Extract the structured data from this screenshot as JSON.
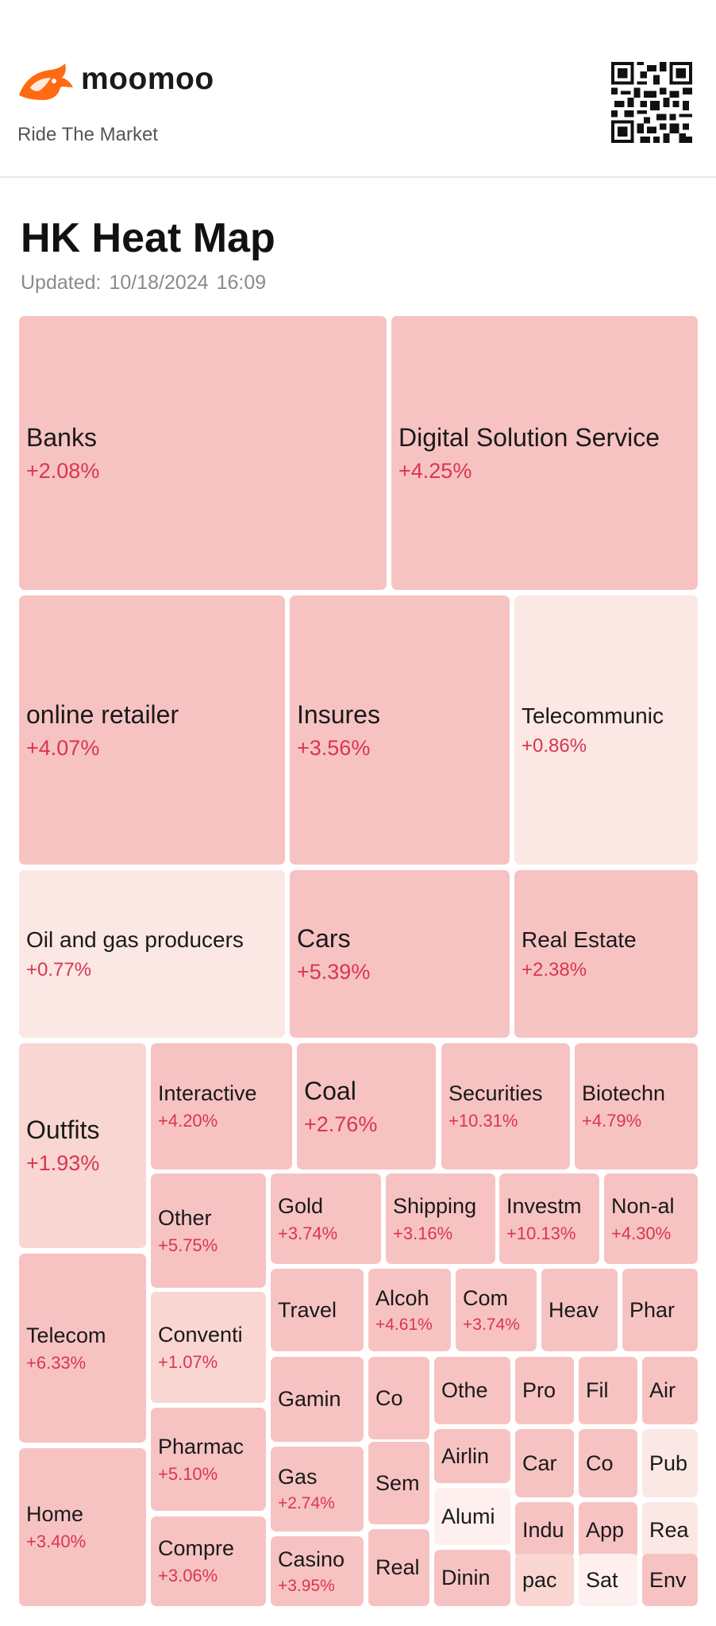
{
  "brand": {
    "name": "moomoo",
    "tagline": "Ride The Market",
    "logo_icon": "bull-logo-icon",
    "qr_icon": "qr-code-icon"
  },
  "page": {
    "title": "HK Heat Map",
    "updated_label": "Updated:",
    "updated_date": "10/18/2024",
    "updated_time": "16:09"
  },
  "colors": {
    "deep": "#f7c3c2",
    "medium": "#f9d6d2",
    "light": "#fbe7e4",
    "pale": "#fdf0ee",
    "positive": "#d9364e"
  },
  "tiles": [
    {
      "name": "Banks",
      "change": "+2.08%",
      "shade": "deep"
    },
    {
      "name": "Digital Solution Service",
      "change": "+4.25%",
      "shade": "deep"
    },
    {
      "name": "online retailer",
      "change": "+4.07%",
      "shade": "deep"
    },
    {
      "name": "Insures",
      "change": "+3.56%",
      "shade": "deep"
    },
    {
      "name": "Telecommunic",
      "change": "+0.86%",
      "shade": "light"
    },
    {
      "name": "Oil and gas producers",
      "change": "+0.77%",
      "shade": "light"
    },
    {
      "name": "Cars",
      "change": "+5.39%",
      "shade": "deep"
    },
    {
      "name": "Real Estate",
      "change": "+2.38%",
      "shade": "deep"
    },
    {
      "name": "Outfits",
      "change": "+1.93%",
      "shade": "medium"
    },
    {
      "name": "Interactive",
      "change": "+4.20%",
      "shade": "deep"
    },
    {
      "name": "Coal",
      "change": "+2.76%",
      "shade": "deep"
    },
    {
      "name": "Securities",
      "change": "+10.31%",
      "shade": "deep"
    },
    {
      "name": "Biotechn",
      "change": "+4.79%",
      "shade": "deep"
    },
    {
      "name": "Other",
      "change": "+5.75%",
      "shade": "deep"
    },
    {
      "name": "Gold",
      "change": "+3.74%",
      "shade": "deep"
    },
    {
      "name": "Shipping",
      "change": "+3.16%",
      "shade": "deep"
    },
    {
      "name": "Investm",
      "change": "+10.13%",
      "shade": "deep"
    },
    {
      "name": "Non-al",
      "change": "+4.30%",
      "shade": "deep"
    },
    {
      "name": "Telecom",
      "change": "+6.33%",
      "shade": "deep"
    },
    {
      "name": "Conventi",
      "change": "+1.07%",
      "shade": "medium"
    },
    {
      "name": "Travel",
      "change": "",
      "shade": "deep"
    },
    {
      "name": "Alcoh",
      "change": "+4.61%",
      "shade": "deep"
    },
    {
      "name": "Com",
      "change": "+3.74%",
      "shade": "deep"
    },
    {
      "name": "Heav",
      "change": "",
      "shade": "deep"
    },
    {
      "name": "Phar",
      "change": "",
      "shade": "deep"
    },
    {
      "name": "Pharmac",
      "change": "+5.10%",
      "shade": "deep"
    },
    {
      "name": "Gamin",
      "change": "",
      "shade": "deep"
    },
    {
      "name": "Co",
      "change": "",
      "shade": "deep"
    },
    {
      "name": "Othe",
      "change": "",
      "shade": "deep"
    },
    {
      "name": "Pro",
      "change": "",
      "shade": "deep"
    },
    {
      "name": "Fil",
      "change": "",
      "shade": "deep"
    },
    {
      "name": "Air",
      "change": "",
      "shade": "deep"
    },
    {
      "name": "Home",
      "change": "+3.40%",
      "shade": "deep"
    },
    {
      "name": "Gas",
      "change": "+2.74%",
      "shade": "deep"
    },
    {
      "name": "Sem",
      "change": "",
      "shade": "deep"
    },
    {
      "name": "Airlin",
      "change": "",
      "shade": "deep"
    },
    {
      "name": "Car",
      "change": "",
      "shade": "deep"
    },
    {
      "name": "Co",
      "change": "",
      "shade": "deep"
    },
    {
      "name": "Pub",
      "change": "",
      "shade": "light"
    },
    {
      "name": "Compre",
      "change": "+3.06%",
      "shade": "deep"
    },
    {
      "name": "Alumi",
      "change": "",
      "shade": "pale"
    },
    {
      "name": "Indu",
      "change": "",
      "shade": "deep"
    },
    {
      "name": "App",
      "change": "",
      "shade": "deep"
    },
    {
      "name": "Rea",
      "change": "",
      "shade": "light"
    },
    {
      "name": "Casino",
      "change": "+3.95%",
      "shade": "deep"
    },
    {
      "name": "Real",
      "change": "",
      "shade": "deep"
    },
    {
      "name": "Dinin",
      "change": "",
      "shade": "deep"
    },
    {
      "name": "pac",
      "change": "",
      "shade": "medium"
    },
    {
      "name": "Sat",
      "change": "",
      "shade": "pale"
    },
    {
      "name": "Env",
      "change": "",
      "shade": "deep"
    }
  ]
}
